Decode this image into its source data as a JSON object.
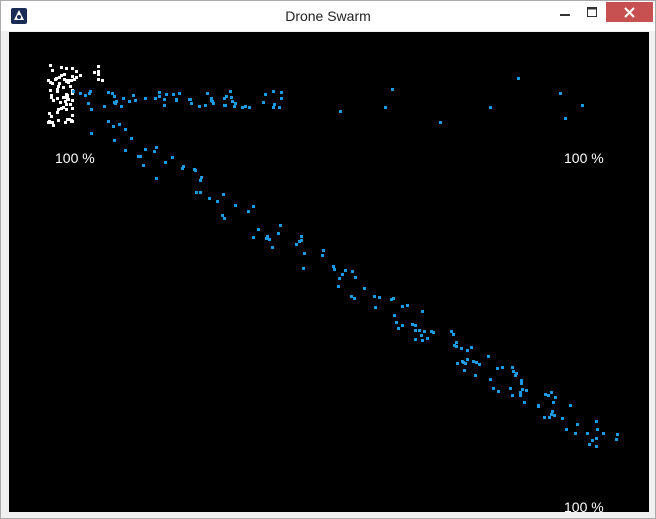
{
  "window": {
    "title": "Drone Swarm"
  },
  "icons": {
    "app": "app-icon",
    "minimize": "minimize-icon",
    "maximize": "maximize-icon",
    "close": "close-icon"
  },
  "colors": {
    "background": "#000000",
    "drone": "#1e9be0",
    "leader": "#ffffff",
    "close_button": "#c75050"
  },
  "game": {
    "health_labels": [
      "100 %",
      "100 %",
      "100 %"
    ]
  }
}
